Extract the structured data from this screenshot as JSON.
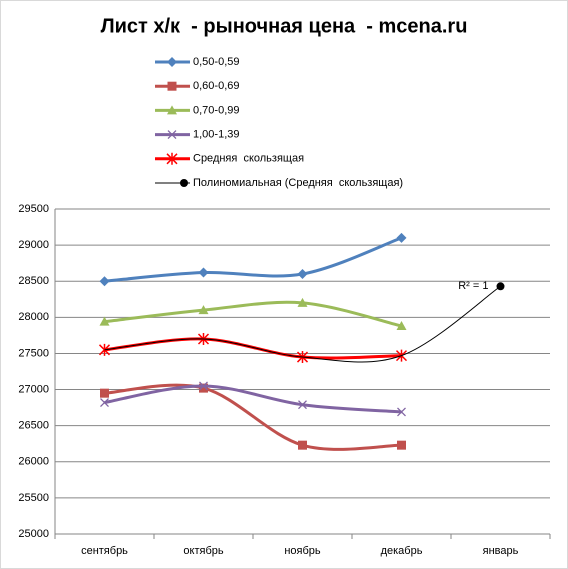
{
  "chart_data": {
    "type": "line",
    "title": "Лист х/к  - рыночная цена  - mcena.ru",
    "categories": [
      "сентябрь",
      "октябрь",
      "ноябрь",
      "декабрь",
      "январь"
    ],
    "series": [
      {
        "name": "0,50-0,59",
        "color": "#4f81bd",
        "marker": "diamond",
        "values": [
          28500,
          28620,
          28600,
          29100,
          null
        ]
      },
      {
        "name": "0,60-0,69",
        "color": "#c0504d",
        "marker": "square",
        "values": [
          26950,
          27020,
          26230,
          26230,
          null
        ]
      },
      {
        "name": "0,70-0,99",
        "color": "#9bbb59",
        "marker": "triangle",
        "values": [
          27940,
          28100,
          28200,
          27880,
          null
        ]
      },
      {
        "name": "1,00-1,39",
        "color": "#8064a2",
        "marker": "cross",
        "values": [
          26820,
          27050,
          26790,
          26690,
          null
        ]
      },
      {
        "name": "Средняя  скользящая",
        "color": "#ff0000",
        "marker": "star",
        "values": [
          27550,
          27700,
          27450,
          27470,
          null
        ]
      },
      {
        "name": "Полиномиальная (Средняя  скользящая)",
        "color": "#000000",
        "marker": "end-dot",
        "values": [
          27550,
          27700,
          27450,
          27470,
          28430
        ]
      }
    ],
    "annotation": "R² = 1",
    "ylim": [
      25000,
      29500
    ],
    "yticks": [
      25000,
      25500,
      26000,
      26500,
      27000,
      27500,
      28000,
      28500,
      29000,
      29500
    ],
    "grid": true
  }
}
